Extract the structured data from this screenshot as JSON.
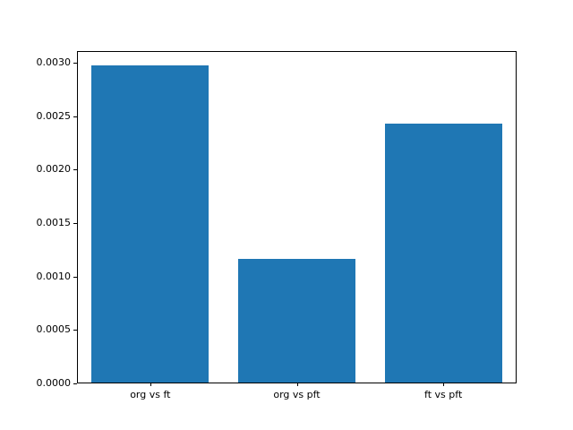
{
  "chart_data": {
    "type": "bar",
    "categories": [
      "org vs ft",
      "org vs pft",
      "ft vs pft"
    ],
    "values": [
      0.00297,
      0.00116,
      0.00242
    ],
    "title": "",
    "xlabel": "",
    "ylabel": "",
    "ylim": [
      0,
      0.00311
    ],
    "yticks": [
      0.0,
      0.0005,
      0.001,
      0.0015,
      0.002,
      0.0025,
      0.003
    ],
    "ytick_labels": [
      "0.0000",
      "0.0005",
      "0.0010",
      "0.0015",
      "0.0020",
      "0.0025",
      "0.0030"
    ],
    "bar_color": "#1f77b4",
    "bar_width_fraction": 0.8,
    "grid": false,
    "legend_position": "none"
  }
}
